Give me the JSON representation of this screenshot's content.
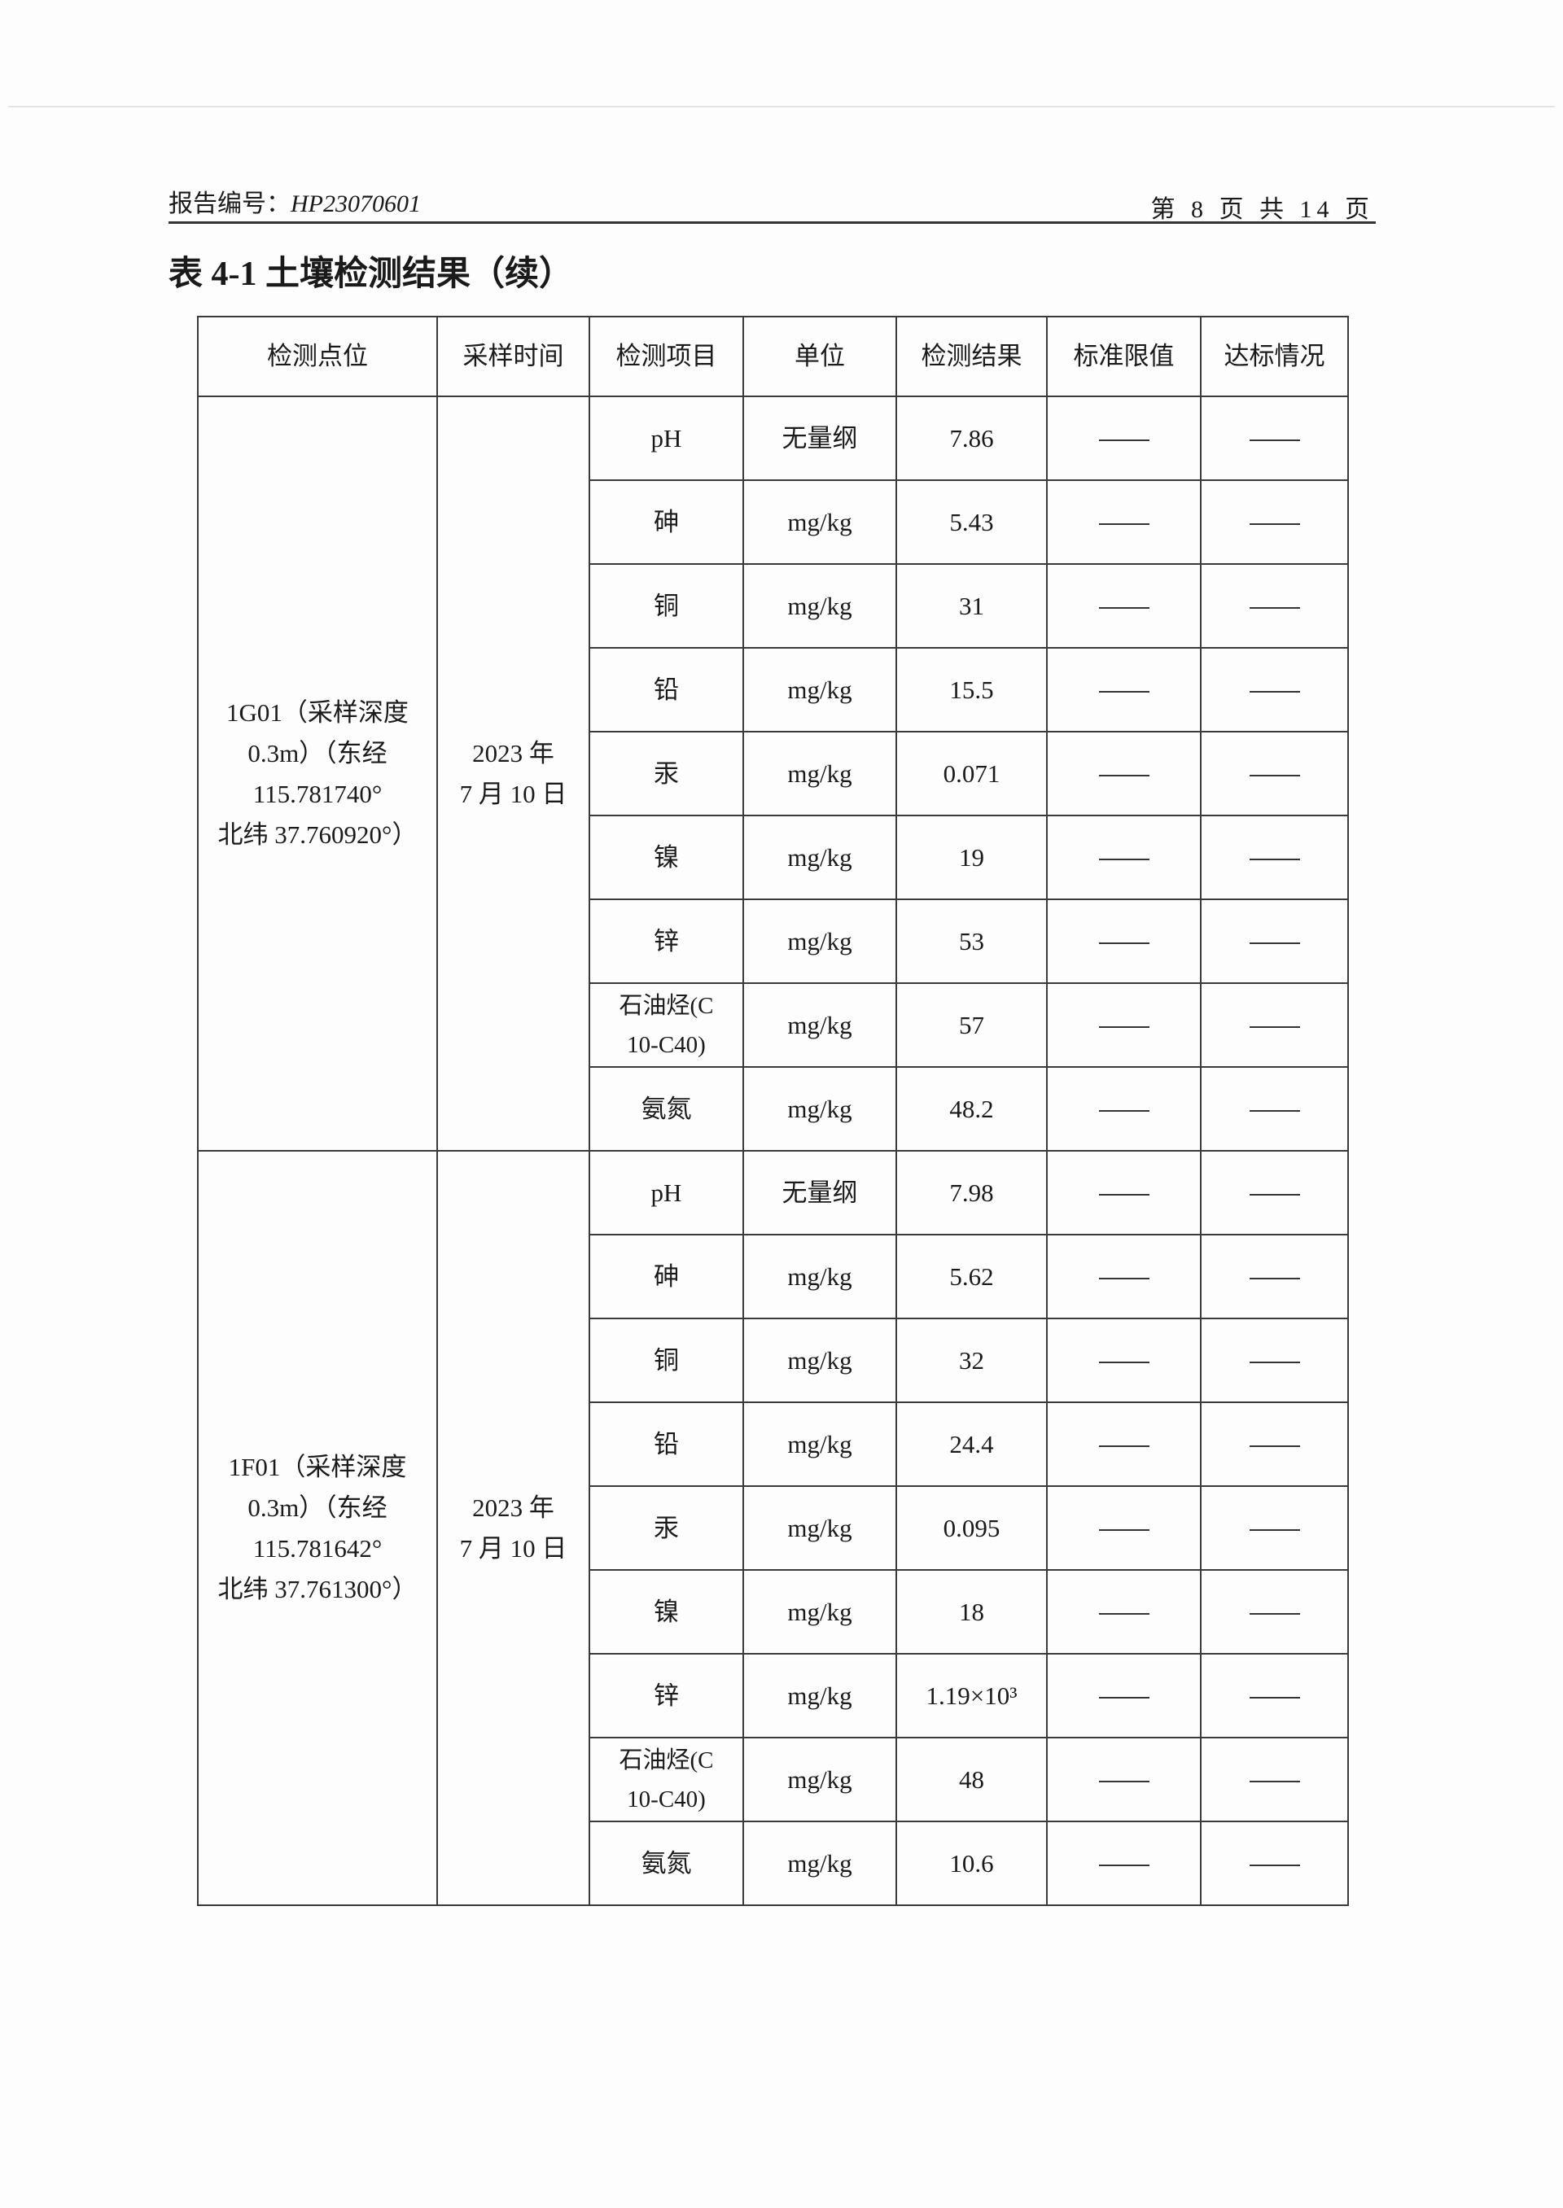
{
  "header": {
    "report_no_label": "报告编号：",
    "report_no": "HP23070601",
    "page_info": "第 8 页 共 14 页"
  },
  "title": "表 4-1 土壤检测结果（续）",
  "table": {
    "columns": [
      "检测点位",
      "采样时间",
      "检测项目",
      "单位",
      "检测结果",
      "标准限值",
      "达标情况"
    ],
    "groups": [
      {
        "location": [
          "1G01（采样深度",
          "0.3m）（东经",
          "115.781740°",
          "北纬 37.760920°）"
        ],
        "time": [
          "2023 年",
          "7 月 10 日"
        ],
        "rows": [
          {
            "item": "pH",
            "unit": "无量纲",
            "result": "7.86",
            "limit": "——",
            "status": "——"
          },
          {
            "item": "砷",
            "unit": "mg/kg",
            "result": "5.43",
            "limit": "——",
            "status": "——"
          },
          {
            "item": "铜",
            "unit": "mg/kg",
            "result": "31",
            "limit": "——",
            "status": "——"
          },
          {
            "item": "铅",
            "unit": "mg/kg",
            "result": "15.5",
            "limit": "——",
            "status": "——"
          },
          {
            "item": "汞",
            "unit": "mg/kg",
            "result": "0.071",
            "limit": "——",
            "status": "——"
          },
          {
            "item": "镍",
            "unit": "mg/kg",
            "result": "19",
            "limit": "——",
            "status": "——"
          },
          {
            "item": "锌",
            "unit": "mg/kg",
            "result": "53",
            "limit": "——",
            "status": "——"
          },
          {
            "item": "石油烃(C10-C40)",
            "unit": "mg/kg",
            "result": "57",
            "limit": "——",
            "status": "——"
          },
          {
            "item": "氨氮",
            "unit": "mg/kg",
            "result": "48.2",
            "limit": "——",
            "status": "——"
          }
        ]
      },
      {
        "location": [
          "1F01（采样深度",
          "0.3m）（东经",
          "115.781642°",
          "北纬 37.761300°）"
        ],
        "time": [
          "2023 年",
          "7 月 10 日"
        ],
        "rows": [
          {
            "item": "pH",
            "unit": "无量纲",
            "result": "7.98",
            "limit": "——",
            "status": "——"
          },
          {
            "item": "砷",
            "unit": "mg/kg",
            "result": "5.62",
            "limit": "——",
            "status": "——"
          },
          {
            "item": "铜",
            "unit": "mg/kg",
            "result": "32",
            "limit": "——",
            "status": "——"
          },
          {
            "item": "铅",
            "unit": "mg/kg",
            "result": "24.4",
            "limit": "——",
            "status": "——"
          },
          {
            "item": "汞",
            "unit": "mg/kg",
            "result": "0.095",
            "limit": "——",
            "status": "——"
          },
          {
            "item": "镍",
            "unit": "mg/kg",
            "result": "18",
            "limit": "——",
            "status": "——"
          },
          {
            "item": "锌",
            "unit": "mg/kg",
            "result": "1.19×10³",
            "limit": "——",
            "status": "——"
          },
          {
            "item": "石油烃(C10-C40)",
            "unit": "mg/kg",
            "result": "48",
            "limit": "——",
            "status": "——"
          },
          {
            "item": "氨氮",
            "unit": "mg/kg",
            "result": "10.6",
            "limit": "——",
            "status": "——"
          }
        ]
      }
    ]
  }
}
